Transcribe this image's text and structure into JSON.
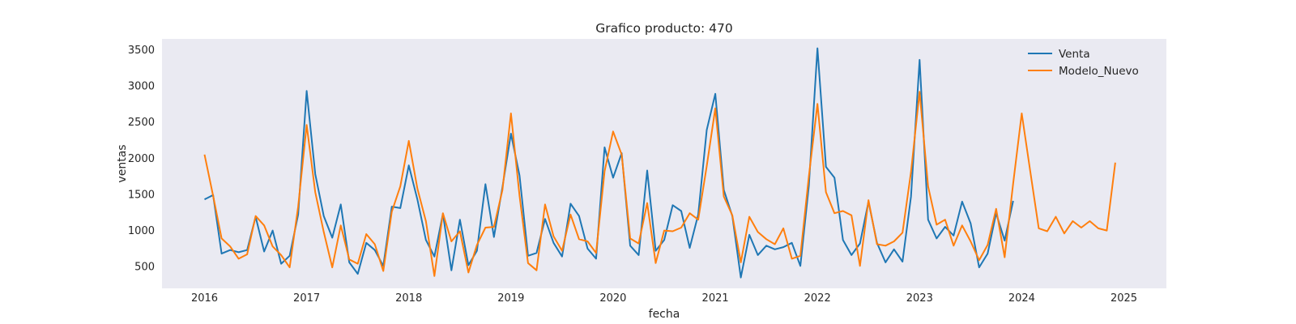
{
  "chart_data": {
    "type": "line",
    "title": "Grafico producto: 470",
    "xlabel": "fecha",
    "ylabel": "ventas",
    "x_range": [
      "2015-08-01",
      "2025-06-01"
    ],
    "ylim": [
      200,
      3650
    ],
    "x_ticks": [
      "2016",
      "2017",
      "2018",
      "2019",
      "2020",
      "2021",
      "2022",
      "2023",
      "2024",
      "2025"
    ],
    "y_ticks": [
      500,
      1000,
      1500,
      2000,
      2500,
      3000,
      3500
    ],
    "grid": false,
    "legend_position": "top-right",
    "background": "#eaeaf2",
    "series": [
      {
        "name": "Venta",
        "color": "#1f77b4",
        "start": "2016-01",
        "frequency": "monthly",
        "values": [
          1430,
          1490,
          680,
          730,
          700,
          730,
          1190,
          710,
          1000,
          540,
          650,
          1220,
          2930,
          1780,
          1200,
          900,
          1360,
          560,
          400,
          830,
          730,
          510,
          1330,
          1310,
          1900,
          1430,
          870,
          640,
          1230,
          450,
          1150,
          520,
          720,
          1640,
          910,
          1600,
          2340,
          1760,
          650,
          690,
          1160,
          830,
          640,
          1370,
          1200,
          750,
          610,
          2150,
          1730,
          2070,
          790,
          660,
          1830,
          720,
          870,
          1350,
          1270,
          760,
          1220,
          2390,
          2890,
          1560,
          1200,
          350,
          940,
          660,
          790,
          740,
          770,
          830,
          510,
          1620,
          3520,
          1880,
          1730,
          870,
          660,
          820,
          1400,
          830,
          560,
          740,
          570,
          1470,
          3360,
          1150,
          890,
          1050,
          930,
          1400,
          1100,
          490,
          680,
          1240,
          860,
          1410
        ],
        "n_points": 96
      },
      {
        "name": "Modelo_Nuevo",
        "color": "#ff7f0e",
        "start": "2016-01",
        "frequency": "monthly",
        "values": [
          2050,
          1480,
          890,
          780,
          610,
          670,
          1200,
          1070,
          780,
          660,
          490,
          1330,
          2460,
          1530,
          980,
          490,
          1070,
          600,
          540,
          950,
          810,
          440,
          1260,
          1610,
          2240,
          1580,
          1130,
          370,
          1240,
          850,
          990,
          420,
          800,
          1040,
          1050,
          1560,
          2620,
          1480,
          550,
          450,
          1360,
          920,
          720,
          1220,
          880,
          850,
          690,
          1820,
          2370,
          2050,
          890,
          820,
          1380,
          550,
          1000,
          990,
          1040,
          1240,
          1150,
          1890,
          2690,
          1470,
          1210,
          560,
          1190,
          980,
          880,
          810,
          1030,
          610,
          650,
          1750,
          2750,
          1530,
          1240,
          1270,
          1210,
          510,
          1420,
          810,
          790,
          850,
          970,
          1810,
          2920,
          1610,
          1080,
          1150,
          790,
          1070,
          850,
          590,
          800,
          1300,
          630,
          1650,
          2620,
          1820,
          1030,
          990,
          1190,
          960,
          1130,
          1040,
          1130,
          1030,
          1000,
          1940
        ],
        "n_points": 108
      }
    ]
  }
}
